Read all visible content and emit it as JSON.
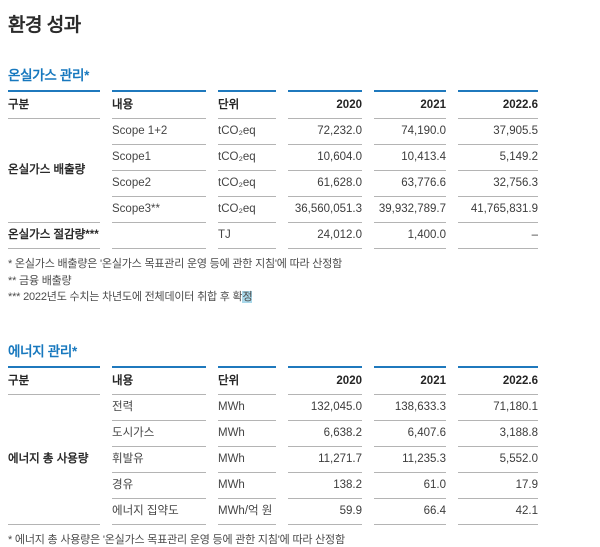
{
  "page": {
    "title": "환경 성과"
  },
  "colors": {
    "accent_blue": "#1778be",
    "table_top_rule": "#1f79bd",
    "row_rule_gray": "#b4b4b4",
    "highlight_blue": "#a9d8ea"
  },
  "ghg": {
    "title": "온실가스 관리*",
    "headers": [
      "구분",
      "내용",
      "단위",
      "2020",
      "2021",
      "2022.6"
    ],
    "group_label": "온실가스 배출량",
    "rows": [
      {
        "item": "Scope 1+2",
        "unit": "tCO₂eq",
        "v2020": "72,232.0",
        "v2021": "74,190.0",
        "v2022": "37,905.5"
      },
      {
        "item": "Scope1",
        "unit": "tCO₂eq",
        "v2020": "10,604.0",
        "v2021": "10,413.4",
        "v2022": "5,149.2"
      },
      {
        "item": "Scope2",
        "unit": "tCO₂eq",
        "v2020": "61,628.0",
        "v2021": "63,776.6",
        "v2022": "32,756.3"
      },
      {
        "item": "Scope3**",
        "unit": "tCO₂eq",
        "v2020": "36,560,051.3",
        "v2021": "39,932,789.7",
        "v2022": "41,765,831.9"
      }
    ],
    "reduction": {
      "label": "온실가스 절감량***",
      "unit": "TJ",
      "v2020": "24,012.0",
      "v2021": "1,400.0",
      "v2022": "–"
    },
    "footnotes": [
      "* 온실가스 배출량은 '온실가스 목표관리 운영 등에 관한 지침'에 따라 산정함",
      "** 금융 배출량"
    ],
    "footnote3_prefix": "*** 2022년도 수치는 차년도에 전체데이터 취합 후 확",
    "footnote3_highlight": "정"
  },
  "energy": {
    "title": "에너지 관리*",
    "headers": [
      "구분",
      "내용",
      "단위",
      "2020",
      "2021",
      "2022.6"
    ],
    "group_label": "에너지 총 사용량",
    "rows": [
      {
        "item": "전력",
        "unit": "MWh",
        "v2020": "132,045.0",
        "v2021": "138,633.3",
        "v2022": "71,180.1"
      },
      {
        "item": "도시가스",
        "unit": "MWh",
        "v2020": "6,638.2",
        "v2021": "6,407.6",
        "v2022": "3,188.8"
      },
      {
        "item": "휘발유",
        "unit": "MWh",
        "v2020": "11,271.7",
        "v2021": "11,235.3",
        "v2022": "5,552.0"
      },
      {
        "item": "경유",
        "unit": "MWh",
        "v2020": "138.2",
        "v2021": "61.0",
        "v2022": "17.9"
      },
      {
        "item": "에너지 집약도",
        "unit": "MWh/억 원",
        "v2020": "59.9",
        "v2021": "66.4",
        "v2022": "42.1"
      }
    ],
    "footnote": "* 에너지 총 사용량은 '온실가스 목표관리 운영 등에 관한 지침'에 따라 산정함"
  }
}
